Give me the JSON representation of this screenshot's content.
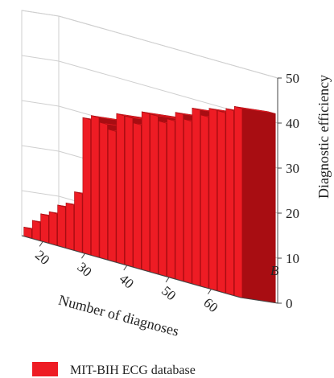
{
  "chart_data": {
    "type": "bar",
    "title": "",
    "xlabel": "Number of diagnoses",
    "ylabel": "Diagnostic efficiency",
    "zlabel": "B",
    "x_tick_labels": [
      "20",
      "30",
      "40",
      "50",
      "60"
    ],
    "y_tick_labels": [
      "0",
      "10",
      "20",
      "30",
      "40",
      "50"
    ],
    "ylim": [
      0,
      50
    ],
    "xlim": [
      15,
      67
    ],
    "grid": true,
    "legend_position": "bottom-left",
    "series": [
      {
        "name": "MIT-BIH ECG database",
        "color": "#ee1c24",
        "x": [
          16,
          18,
          20,
          22,
          24,
          26,
          28,
          30,
          32,
          34,
          36,
          38,
          40,
          42,
          44,
          46,
          48,
          50,
          52,
          54,
          56,
          58,
          60,
          62,
          64,
          66
        ],
        "values": [
          2,
          4,
          6,
          7,
          9,
          10,
          13,
          30,
          31,
          30,
          29,
          33,
          33,
          32,
          35,
          35,
          34,
          35,
          37,
          36,
          39,
          38,
          40,
          40,
          41,
          42
        ]
      }
    ]
  },
  "colors": {
    "bar": "#ee1c24",
    "bar_edge": "#a80d12",
    "grid": "#cfcfcf",
    "axis": "#444444"
  }
}
